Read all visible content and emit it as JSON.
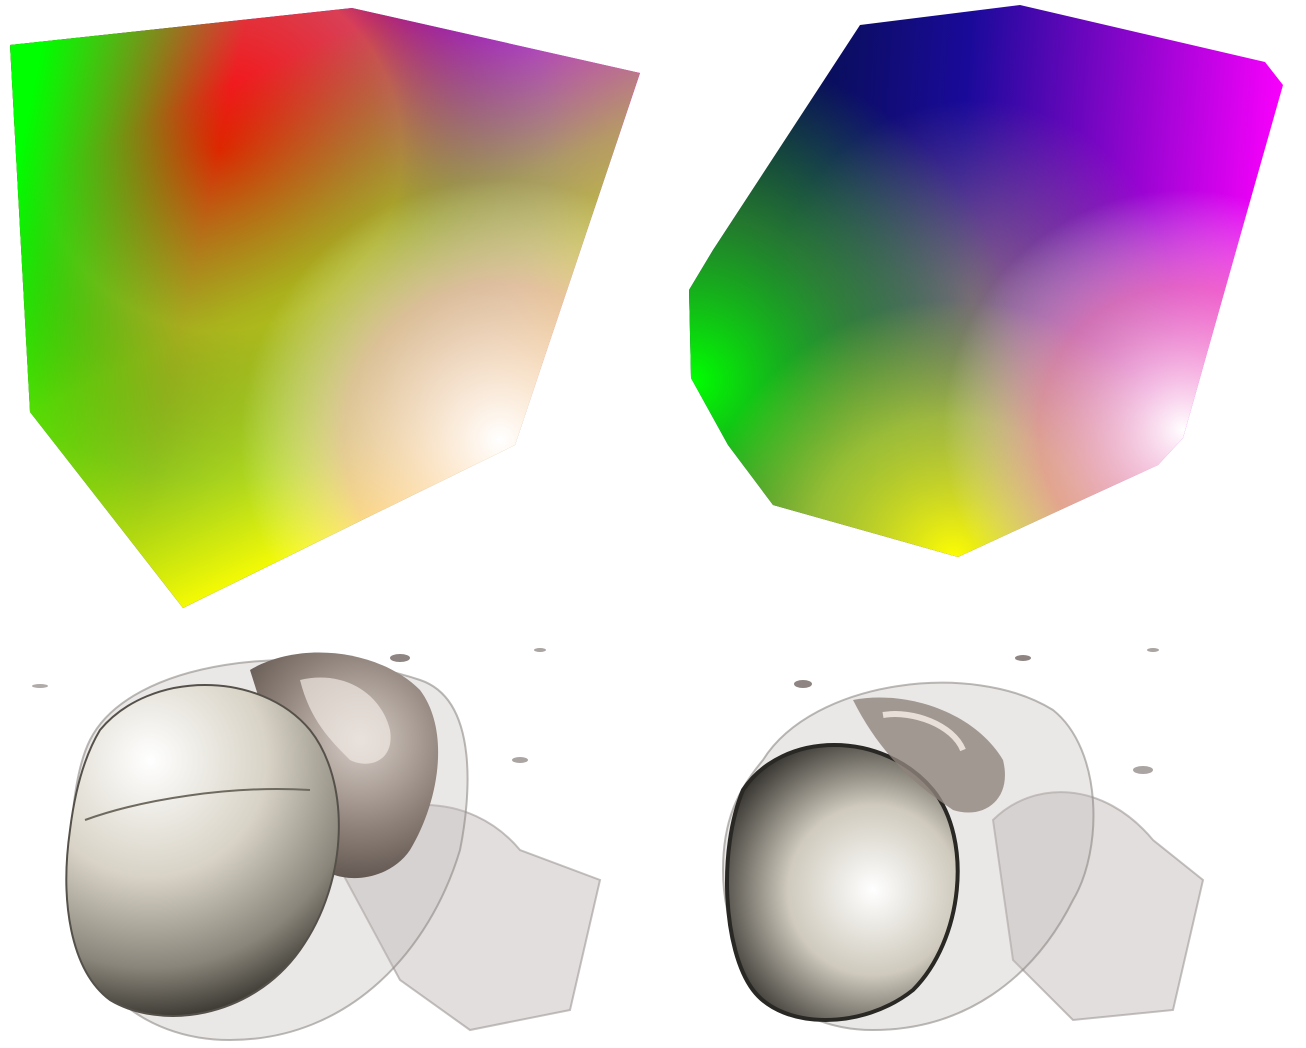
{
  "figure": {
    "panels": [
      {
        "id": "rgb-cube-full",
        "subject": "rgb-color-cube"
      },
      {
        "id": "rgb-cube-clipped",
        "subject": "rgb-color-cube-clipped-corners"
      },
      {
        "id": "skull-volume-full",
        "subject": "ct-skull-volume-render"
      },
      {
        "id": "skull-volume-clipped",
        "subject": "ct-skull-volume-render-clipped"
      }
    ],
    "colors": {
      "black": "#000000",
      "red": "#ff0000",
      "green": "#00ff00",
      "blue": "#0000ff",
      "yellow": "#ffff00",
      "magenta": "#ff00ff",
      "white": "#ffffff",
      "bone": "#d9d4c7",
      "bone_shadow": "#5a554c",
      "soft_tissue": "#b9b3b0"
    }
  }
}
